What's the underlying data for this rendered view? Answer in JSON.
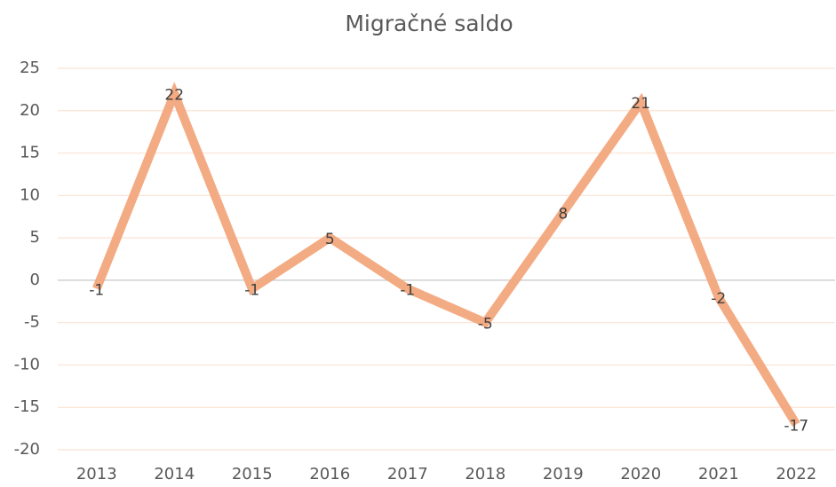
{
  "chart_data": {
    "type": "line",
    "title": "Migračné saldo",
    "categories": [
      "2013",
      "2014",
      "2015",
      "2016",
      "2017",
      "2018",
      "2019",
      "2020",
      "2021",
      "2022"
    ],
    "values": [
      -1,
      22,
      -1,
      5,
      -1,
      -5,
      8,
      21,
      -2,
      -17
    ],
    "color": "#f2a67c",
    "ylim": [
      -20,
      25
    ],
    "yticks": [
      -20,
      -15,
      -10,
      -5,
      0,
      5,
      10,
      15,
      20,
      25
    ],
    "grid": true,
    "data_labels": true
  }
}
